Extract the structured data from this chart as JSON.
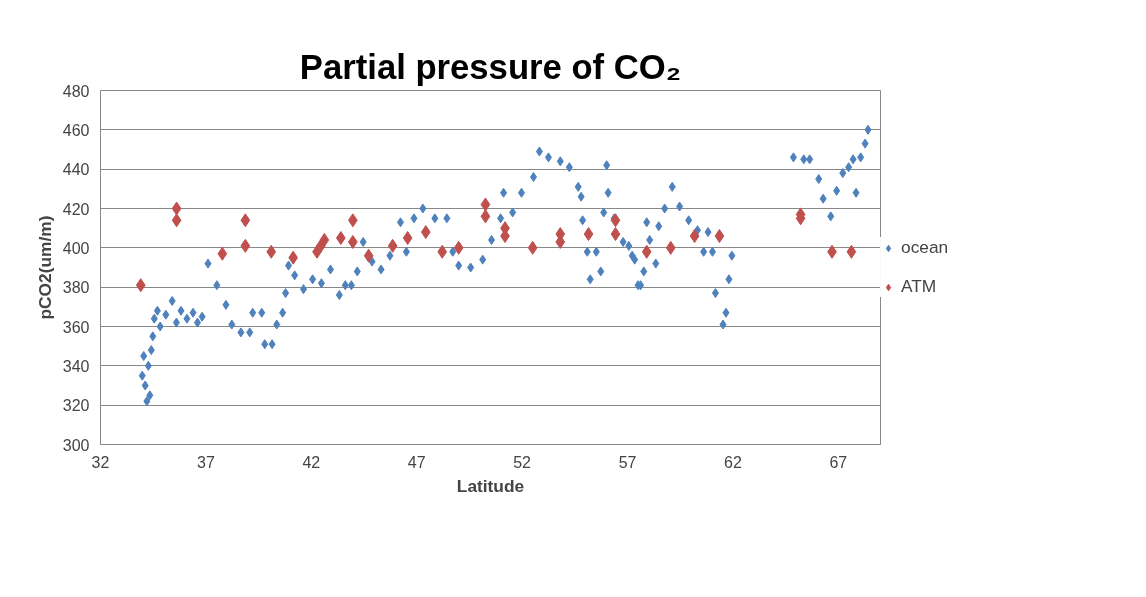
{
  "chart_data": {
    "type": "scatter",
    "title": "Partial pressure of CO₂",
    "xlabel": "Latitude",
    "ylabel": "pCO2(um/m)",
    "xlim": [
      32,
      69
    ],
    "xticks": [
      32,
      37,
      42,
      47,
      52,
      57,
      62,
      67
    ],
    "ylim": [
      300,
      480
    ],
    "yticks": [
      300,
      320,
      340,
      360,
      380,
      400,
      420,
      440,
      460,
      480
    ],
    "grid": "y",
    "legend": "right",
    "marker": "diamond",
    "series": [
      {
        "name": "ocean",
        "color": "#4f81bd",
        "x": [
          33.98,
          34.05,
          34.12,
          34.2,
          34.27,
          34.34,
          34.41,
          34.48,
          34.55,
          34.7,
          34.83,
          35.1,
          35.4,
          35.6,
          35.82,
          36.1,
          36.39,
          36.6,
          36.82,
          37.1,
          37.52,
          37.95,
          38.23,
          38.66,
          39.08,
          39.22,
          39.65,
          39.79,
          40.14,
          40.36,
          40.64,
          40.78,
          40.92,
          41.21,
          41.63,
          42.06,
          42.48,
          42.91,
          43.33,
          43.61,
          43.9,
          44.18,
          44.46,
          44.88,
          45.31,
          45.73,
          46.23,
          46.51,
          46.87,
          47.29,
          47.86,
          48.43,
          48.71,
          48.99,
          49.56,
          50.13,
          50.55,
          50.98,
          51.12,
          51.55,
          51.97,
          52.54,
          52.82,
          53.25,
          53.81,
          54.24,
          54.66,
          54.8,
          54.87,
          55.09,
          55.23,
          55.52,
          55.73,
          55.87,
          56.01,
          56.08,
          56.37,
          56.79,
          57.06,
          57.22,
          57.34,
          57.5,
          57.62,
          57.77,
          57.91,
          58.05,
          58.34,
          58.48,
          58.76,
          59.12,
          59.47,
          59.9,
          60.32,
          60.61,
          60.82,
          61.03,
          61.17,
          61.53,
          61.67,
          61.81,
          61.95,
          64.87,
          65.36,
          65.64,
          66.07,
          66.28,
          66.64,
          66.92,
          67.21,
          67.49,
          67.7,
          67.84,
          68.06,
          68.27,
          68.41
        ],
        "values": [
          335,
          345,
          330,
          322,
          340,
          325,
          348,
          355,
          364,
          368,
          360,
          366,
          373,
          362,
          368,
          364,
          367,
          362,
          365,
          392,
          381,
          371,
          361,
          357,
          357,
          367,
          367,
          351,
          351,
          361,
          367,
          377,
          391,
          386,
          379,
          384,
          382,
          389,
          376,
          381,
          381,
          388,
          403,
          393,
          389,
          396,
          413,
          398,
          415,
          420,
          415,
          415,
          398,
          391,
          390,
          394,
          404,
          415,
          428,
          418,
          428,
          436,
          449,
          446,
          444,
          441,
          431,
          426,
          414,
          398,
          384,
          398,
          388,
          418,
          442,
          428,
          415,
          403,
          401,
          396,
          394,
          381,
          381,
          388,
          413,
          404,
          392,
          411,
          420,
          431,
          421,
          414,
          409,
          398,
          408,
          398,
          377,
          361,
          367,
          384,
          396,
          446,
          445,
          445,
          435,
          425,
          416,
          429,
          438,
          441,
          445,
          428,
          446,
          453,
          460
        ]
      },
      {
        "name": "ATM",
        "color": "#c0504d",
        "x": [
          33.91,
          35.61,
          35.61,
          37.78,
          38.87,
          38.87,
          40.1,
          41.14,
          42.27,
          42.45,
          42.62,
          43.4,
          43.97,
          43.97,
          44.72,
          45.86,
          46.57,
          47.43,
          48.21,
          48.99,
          50.26,
          50.26,
          51.19,
          51.19,
          52.5,
          53.81,
          53.81,
          55.15,
          56.43,
          56.43,
          57.91,
          59.05,
          60.18,
          61.36,
          65.21,
          65.21,
          66.7,
          67.62
        ],
        "values": [
          381,
          420,
          414,
          397,
          414,
          401,
          398,
          395,
          398,
          401,
          404,
          405,
          414,
          403,
          396,
          401,
          405,
          408,
          398,
          400,
          422,
          416,
          410,
          406,
          400,
          407,
          403,
          407,
          414,
          407,
          398,
          400,
          406,
          406,
          417,
          415,
          398,
          398
        ]
      }
    ]
  }
}
